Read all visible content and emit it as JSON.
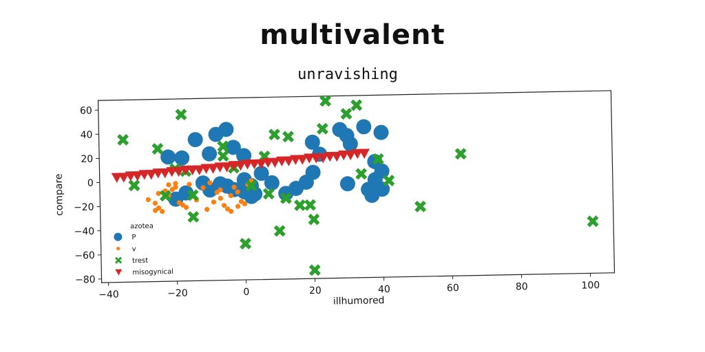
{
  "chart_data": {
    "type": "scatter",
    "title": "multivalent",
    "subtitle": "unravishing",
    "xlabel": "illhumored",
    "ylabel": "compare",
    "xlim": [
      -42,
      107
    ],
    "ylim": [
      -83,
      68
    ],
    "xticks": [
      -40,
      -20,
      0,
      20,
      40,
      60,
      80,
      100
    ],
    "yticks": [
      60,
      40,
      20,
      0,
      -20,
      -40,
      -60,
      -80
    ],
    "xtick_labels": [
      "−40",
      "−20",
      "0",
      "20",
      "40",
      "60",
      "80",
      "100"
    ],
    "ytick_labels": [
      "60",
      "40",
      "20",
      "0",
      "−20",
      "−40",
      "−60",
      "−80"
    ],
    "grid": false,
    "legend": {
      "title": "azotea",
      "placement": "lower-left"
    },
    "series": [
      {
        "name": "P",
        "marker": "circle-large",
        "color": "#1f77b4",
        "points": [
          [
            -22,
            20
          ],
          [
            -18,
            19
          ],
          [
            -14,
            34
          ],
          [
            -10,
            22
          ],
          [
            -8,
            38
          ],
          [
            -5,
            42
          ],
          [
            -3,
            27
          ],
          [
            0,
            20
          ],
          [
            -20,
            -15
          ],
          [
            -17,
            -10
          ],
          [
            -12,
            -2
          ],
          [
            -10,
            -8
          ],
          [
            -5,
            -5
          ],
          [
            -3,
            -8
          ],
          [
            0,
            -10
          ],
          [
            2,
            -14
          ],
          [
            2,
            -5
          ],
          [
            5,
            5
          ],
          [
            8,
            -3
          ],
          [
            12,
            -12
          ],
          [
            15,
            -8
          ],
          [
            18,
            -3
          ],
          [
            20,
            5
          ],
          [
            20,
            30
          ],
          [
            22,
            20
          ],
          [
            28,
            40
          ],
          [
            30,
            35
          ],
          [
            30,
            -5
          ],
          [
            31,
            28
          ],
          [
            35,
            42
          ],
          [
            36,
            -10
          ],
          [
            37,
            -15
          ],
          [
            38,
            13
          ],
          [
            38,
            -5
          ],
          [
            38,
            -2
          ],
          [
            40,
            37
          ],
          [
            40,
            5
          ],
          [
            40,
            -10
          ],
          [
            3,
            -12
          ],
          [
            0,
            0
          ],
          [
            -7,
            -3
          ]
        ]
      },
      {
        "name": "v",
        "marker": "circle-small",
        "color": "#ff7f0e",
        "points": [
          [
            -28,
            -15
          ],
          [
            -26,
            -18
          ],
          [
            -25,
            -22
          ],
          [
            -24,
            -25
          ],
          [
            -23,
            -8
          ],
          [
            -22,
            -3
          ],
          [
            -20,
            -2
          ],
          [
            -19,
            -18
          ],
          [
            -18,
            -20
          ],
          [
            -17,
            -22
          ],
          [
            -15,
            -13
          ],
          [
            -12,
            -6
          ],
          [
            -10,
            -2
          ],
          [
            -8,
            -10
          ],
          [
            -7,
            -15
          ],
          [
            -6,
            -21
          ],
          [
            -5,
            -24
          ],
          [
            -4,
            -13
          ],
          [
            -3,
            -6
          ],
          [
            -2,
            -10
          ],
          [
            -1,
            -18
          ],
          [
            0,
            -20
          ],
          [
            1,
            -4
          ],
          [
            2,
            -1
          ],
          [
            -25,
            -10
          ],
          [
            -22,
            -12
          ],
          [
            -20,
            -5
          ],
          [
            -16,
            -3
          ],
          [
            -14,
            -16
          ],
          [
            -11,
            -24
          ],
          [
            -9,
            -18
          ],
          [
            -4,
            -26
          ],
          [
            -2,
            -22
          ],
          [
            -26,
            -24
          ],
          [
            -21,
            -7
          ],
          [
            -7,
            -8
          ]
        ]
      },
      {
        "name": "trest",
        "marker": "x",
        "color": "#2ca02c",
        "points": [
          [
            -35,
            35
          ],
          [
            -32,
            -3
          ],
          [
            -25,
            27
          ],
          [
            -18,
            55
          ],
          [
            -20,
            10
          ],
          [
            -17,
            8
          ],
          [
            -23,
            -12
          ],
          [
            -15,
            -12
          ],
          [
            -15,
            -30
          ],
          [
            -6,
            28
          ],
          [
            -6,
            20
          ],
          [
            -3,
            10
          ],
          [
            0,
            -53
          ],
          [
            2,
            -5
          ],
          [
            6,
            19
          ],
          [
            7,
            -12
          ],
          [
            9,
            37
          ],
          [
            10,
            -43
          ],
          [
            12,
            -16
          ],
          [
            13,
            35
          ],
          [
            16,
            -22
          ],
          [
            19,
            -22
          ],
          [
            20,
            -34
          ],
          [
            20,
            -76
          ],
          [
            23,
            41
          ],
          [
            24,
            64
          ],
          [
            30,
            53
          ],
          [
            33,
            60
          ],
          [
            34,
            3
          ],
          [
            39,
            15
          ],
          [
            42,
            -3
          ],
          [
            51,
            -25
          ],
          [
            63,
            18
          ],
          [
            101,
            -40
          ]
        ]
      },
      {
        "name": "misogynical",
        "marker": "triangle-down",
        "color": "#d62728",
        "points": [
          [
            -37,
            4
          ],
          [
            -35,
            4
          ],
          [
            -33,
            5
          ],
          [
            -31,
            5
          ],
          [
            -29,
            6
          ],
          [
            -27,
            6
          ],
          [
            -25,
            7
          ],
          [
            -23,
            7
          ],
          [
            -21,
            8
          ],
          [
            -19,
            8
          ],
          [
            -17,
            9
          ],
          [
            -15,
            9
          ],
          [
            -13,
            9
          ],
          [
            -11,
            10
          ],
          [
            -9,
            10
          ],
          [
            -7,
            11
          ],
          [
            -5,
            11
          ],
          [
            -3,
            12
          ],
          [
            -1,
            12
          ],
          [
            1,
            13
          ],
          [
            3,
            13
          ],
          [
            5,
            13
          ],
          [
            7,
            14
          ],
          [
            9,
            14
          ],
          [
            11,
            15
          ],
          [
            13,
            15
          ],
          [
            15,
            16
          ],
          [
            17,
            16
          ],
          [
            19,
            17
          ],
          [
            21,
            17
          ],
          [
            23,
            17
          ],
          [
            25,
            18
          ],
          [
            27,
            18
          ],
          [
            29,
            19
          ],
          [
            31,
            19
          ],
          [
            33,
            20
          ],
          [
            35,
            20
          ]
        ]
      }
    ]
  }
}
